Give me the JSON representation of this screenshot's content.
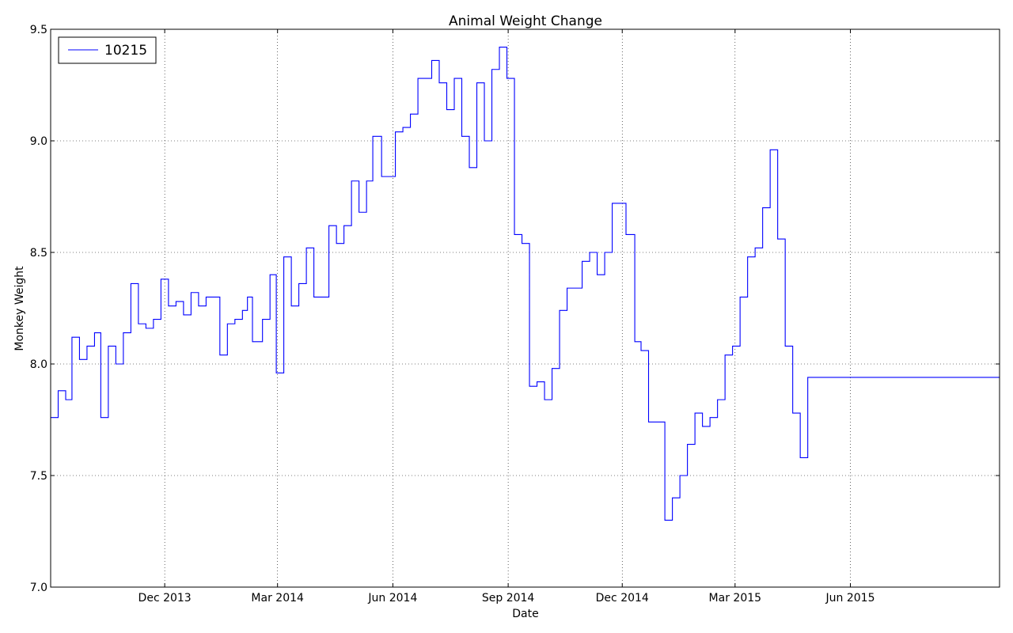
{
  "chart_data": {
    "type": "line",
    "title": "Animal Weight Change",
    "xlabel": "Date",
    "ylabel": "Monkey Weight",
    "ylim": [
      7.0,
      9.5
    ],
    "xlim": [
      "2013-09-01",
      "2015-09-28"
    ],
    "yticks": [
      "7.0",
      "7.5",
      "8.0",
      "8.5",
      "9.0",
      "9.5"
    ],
    "xticks": [
      {
        "date": "2013-12-01",
        "label": "Dec 2013"
      },
      {
        "date": "2014-03-01",
        "label": "Mar 2014"
      },
      {
        "date": "2014-06-01",
        "label": "Jun 2014"
      },
      {
        "date": "2014-09-01",
        "label": "Sep 2014"
      },
      {
        "date": "2014-12-01",
        "label": "Dec 2014"
      },
      {
        "date": "2015-03-01",
        "label": "Mar 2015"
      },
      {
        "date": "2015-06-01",
        "label": "Jun 2015"
      }
    ],
    "grid": true,
    "legend_position": "top-left",
    "series": [
      {
        "name": "10215",
        "color": "#0000ff",
        "step": true,
        "points": [
          [
            "2013-09-01",
            7.76
          ],
          [
            "2013-09-07",
            7.88
          ],
          [
            "2013-09-13",
            7.84
          ],
          [
            "2013-09-18",
            8.12
          ],
          [
            "2013-09-24",
            8.02
          ],
          [
            "2013-09-30",
            8.08
          ],
          [
            "2013-10-06",
            8.14
          ],
          [
            "2013-10-11",
            7.76
          ],
          [
            "2013-10-17",
            8.08
          ],
          [
            "2013-10-23",
            8.0
          ],
          [
            "2013-10-29",
            8.14
          ],
          [
            "2013-11-04",
            8.36
          ],
          [
            "2013-11-10",
            8.18
          ],
          [
            "2013-11-16",
            8.16
          ],
          [
            "2013-11-22",
            8.2
          ],
          [
            "2013-11-28",
            8.38
          ],
          [
            "2013-12-04",
            8.26
          ],
          [
            "2013-12-10",
            8.28
          ],
          [
            "2013-12-16",
            8.22
          ],
          [
            "2013-12-22",
            8.32
          ],
          [
            "2013-12-28",
            8.26
          ],
          [
            "2014-01-03",
            8.3
          ],
          [
            "2014-01-14",
            8.04
          ],
          [
            "2014-01-20",
            8.18
          ],
          [
            "2014-01-26",
            8.2
          ],
          [
            "2014-02-01",
            8.24
          ],
          [
            "2014-02-05",
            8.3
          ],
          [
            "2014-02-09",
            8.1
          ],
          [
            "2014-02-17",
            8.2
          ],
          [
            "2014-02-23",
            8.4
          ],
          [
            "2014-02-28",
            7.96
          ],
          [
            "2014-03-06",
            8.48
          ],
          [
            "2014-03-12",
            8.26
          ],
          [
            "2014-03-18",
            8.36
          ],
          [
            "2014-03-24",
            8.52
          ],
          [
            "2014-03-30",
            8.3
          ],
          [
            "2014-04-11",
            8.62
          ],
          [
            "2014-04-17",
            8.54
          ],
          [
            "2014-04-23",
            8.62
          ],
          [
            "2014-04-29",
            8.82
          ],
          [
            "2014-05-05",
            8.68
          ],
          [
            "2014-05-11",
            8.82
          ],
          [
            "2014-05-16",
            9.02
          ],
          [
            "2014-05-23",
            8.84
          ],
          [
            "2014-06-03",
            9.04
          ],
          [
            "2014-06-09",
            9.06
          ],
          [
            "2014-06-15",
            9.12
          ],
          [
            "2014-06-21",
            9.28
          ],
          [
            "2014-07-02",
            9.36
          ],
          [
            "2014-07-08",
            9.26
          ],
          [
            "2014-07-14",
            9.14
          ],
          [
            "2014-07-20",
            9.28
          ],
          [
            "2014-07-26",
            9.02
          ],
          [
            "2014-08-01",
            8.88
          ],
          [
            "2014-08-07",
            9.26
          ],
          [
            "2014-08-13",
            9.0
          ],
          [
            "2014-08-19",
            9.32
          ],
          [
            "2014-08-25",
            9.42
          ],
          [
            "2014-08-31",
            9.28
          ],
          [
            "2014-09-06",
            8.58
          ],
          [
            "2014-09-12",
            8.54
          ],
          [
            "2014-09-18",
            7.9
          ],
          [
            "2014-09-24",
            7.92
          ],
          [
            "2014-09-30",
            7.84
          ],
          [
            "2014-10-06",
            7.98
          ],
          [
            "2014-10-12",
            8.24
          ],
          [
            "2014-10-18",
            8.34
          ],
          [
            "2014-10-30",
            8.46
          ],
          [
            "2014-11-05",
            8.5
          ],
          [
            "2014-11-11",
            8.4
          ],
          [
            "2014-11-17",
            8.5
          ],
          [
            "2014-11-23",
            8.72
          ],
          [
            "2014-12-04",
            8.58
          ],
          [
            "2014-12-11",
            8.1
          ],
          [
            "2014-12-16",
            8.06
          ],
          [
            "2014-12-22",
            7.74
          ],
          [
            "2015-01-04",
            7.3
          ],
          [
            "2015-01-10",
            7.4
          ],
          [
            "2015-01-16",
            7.5
          ],
          [
            "2015-01-22",
            7.64
          ],
          [
            "2015-01-28",
            7.78
          ],
          [
            "2015-02-03",
            7.72
          ],
          [
            "2015-02-09",
            7.76
          ],
          [
            "2015-02-15",
            7.84
          ],
          [
            "2015-02-21",
            8.04
          ],
          [
            "2015-02-27",
            8.08
          ],
          [
            "2015-03-05",
            8.3
          ],
          [
            "2015-03-11",
            8.48
          ],
          [
            "2015-03-17",
            8.52
          ],
          [
            "2015-03-23",
            8.7
          ],
          [
            "2015-03-29",
            8.96
          ],
          [
            "2015-04-04",
            8.56
          ],
          [
            "2015-04-10",
            8.08
          ],
          [
            "2015-04-16",
            7.78
          ],
          [
            "2015-04-22",
            7.58
          ],
          [
            "2015-04-28",
            7.94
          ],
          [
            "2015-09-28",
            7.94
          ]
        ]
      }
    ]
  }
}
